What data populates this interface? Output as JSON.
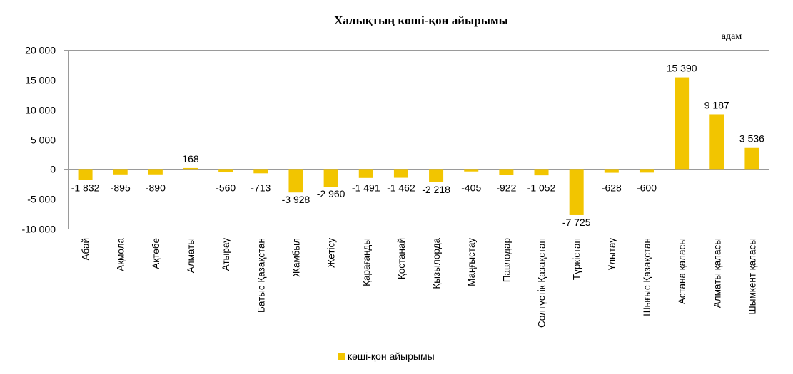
{
  "chart_data": {
    "type": "bar",
    "title": "Халықтың көші-қон айырымы",
    "unit_label": "адам",
    "categories": [
      "Абай",
      "Ақмола",
      "Ақтөбе",
      "Алматы",
      "Атырау",
      "Батыс Қазақстан",
      "Жамбыл",
      "Жетісу",
      "Қарағанды",
      "Қостанай",
      "Қызылорда",
      "Маңғыстау",
      "Павлодар",
      "Солтүстік Қазақстан",
      "Түркістан",
      "Ұлытау",
      "Шығыс  Қазақстан",
      "Астана қаласы",
      "Алматы қаласы",
      "Шымкент қаласы"
    ],
    "series": [
      {
        "name": "көші-қон айырымы",
        "color": "#f2c500",
        "values": [
          -1832,
          -895,
          -890,
          168,
          -560,
          -713,
          -3928,
          -2960,
          -1491,
          -1462,
          -2218,
          -405,
          -922,
          -1052,
          -7725,
          -628,
          -600,
          15390,
          9187,
          3536
        ]
      }
    ],
    "data_labels": [
      "-1 832",
      "-895",
      "-890",
      "168",
      "-560",
      "-713",
      "-3 928",
      "-2 960",
      "-1 491",
      "-1 462",
      "-2 218",
      "-405",
      "-922",
      "-1 052",
      "-7 725",
      "-628",
      "-600",
      "15 390",
      "9 187",
      "3 536"
    ],
    "ylim": [
      -10000,
      20000
    ],
    "yticks": [
      -10000,
      -5000,
      0,
      5000,
      10000,
      15000,
      20000
    ],
    "ytick_labels": [
      "-10 000",
      "-5 000",
      "0",
      "5 000",
      "10 000",
      "15 000",
      "20 000"
    ],
    "grid": true,
    "legend_position": "bottom"
  }
}
